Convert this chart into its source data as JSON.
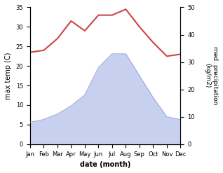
{
  "months": [
    "Jan",
    "Feb",
    "Mar",
    "Apr",
    "May",
    "Jun",
    "Jul",
    "Aug",
    "Sep",
    "Oct",
    "Nov",
    "Dec"
  ],
  "month_positions": [
    1,
    2,
    3,
    4,
    5,
    6,
    7,
    8,
    9,
    10,
    11,
    12
  ],
  "temperature": [
    23.5,
    24.0,
    27.0,
    31.5,
    29.0,
    33.0,
    33.0,
    34.5,
    30.0,
    26.0,
    22.5,
    23.0
  ],
  "precipitation": [
    8.0,
    9.0,
    11.0,
    14.0,
    18.0,
    28.0,
    33.0,
    33.0,
    25.0,
    17.0,
    10.0,
    9.0
  ],
  "temp_color": "#cc4444",
  "precip_fill_color": "#c8d0f0",
  "precip_line_color": "#9aa8e0",
  "xlabel": "date (month)",
  "ylabel_left": "max temp (C)",
  "ylabel_right": "med. precipitation\n(kg/m2)",
  "ylim_left": [
    0,
    35
  ],
  "ylim_right": [
    0,
    50
  ],
  "yticks_left": [
    0,
    5,
    10,
    15,
    20,
    25,
    30,
    35
  ],
  "yticks_right": [
    0,
    10,
    20,
    30,
    40,
    50
  ],
  "bg_color": "#ffffff"
}
